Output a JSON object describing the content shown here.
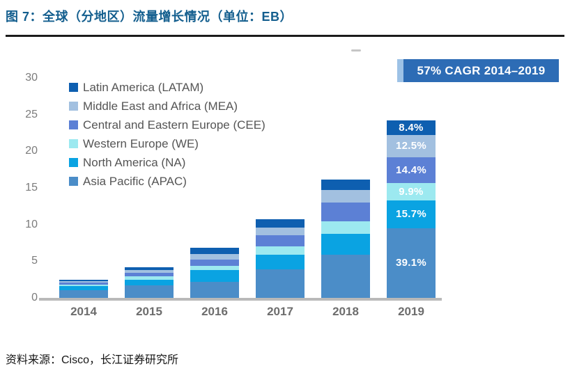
{
  "header": {
    "title": "图 7：全球（分地区）流量增长情况（单位：EB）"
  },
  "annotation": {
    "cagr_label": "57% CAGR 2014–2019"
  },
  "chart_data": {
    "type": "bar",
    "stacked": true,
    "title": "全球（分地区）流量增长情况",
    "unit": "EB",
    "categories": [
      "2014",
      "2015",
      "2016",
      "2017",
      "2018",
      "2019"
    ],
    "series": [
      {
        "name": "Asia Pacific (APAC)",
        "color": "#4b8dc8",
        "values": [
          1.0,
          1.7,
          2.2,
          3.9,
          5.9,
          9.5
        ],
        "label_2019": "39.1%"
      },
      {
        "name": "North America (NA)",
        "color": "#0aa3e2",
        "values": [
          0.6,
          0.8,
          1.6,
          2.0,
          2.8,
          3.8
        ],
        "label_2019": "15.7%"
      },
      {
        "name": "Western Europe (WE)",
        "color": "#9ce9f0",
        "values": [
          0.2,
          0.4,
          0.6,
          1.1,
          1.7,
          2.4
        ],
        "label_2019": "9.9%"
      },
      {
        "name": "Central and Eastern Europe (CEE)",
        "color": "#5c80d5",
        "values": [
          0.3,
          0.5,
          0.8,
          1.5,
          2.6,
          3.5
        ],
        "label_2019": "14.4%"
      },
      {
        "name": "Middle East and Africa (MEA)",
        "color": "#a2c0e0",
        "values": [
          0.2,
          0.4,
          0.8,
          1.1,
          1.7,
          3.0
        ],
        "label_2019": "12.5%"
      },
      {
        "name": "Latin America (LATAM)",
        "color": "#0e5fb0",
        "values": [
          0.2,
          0.4,
          0.8,
          1.1,
          1.4,
          2.0
        ],
        "label_2019": "8.4%"
      }
    ],
    "legend_order_top_to_bottom": [
      "Latin America (LATAM)",
      "Middle East and Africa (MEA)",
      "Central and Eastern Europe (CEE)",
      "Western Europe (WE)",
      "North America (NA)",
      "Asia Pacific (APAC)"
    ],
    "ylim": [
      0,
      30
    ],
    "yticks": [
      0,
      5,
      10,
      15,
      20,
      25,
      30
    ],
    "xlabel": "",
    "ylabel": "",
    "grid": false,
    "legend_position": "upper-left"
  },
  "footer": {
    "source": "资料来源：Cisco，长江证券研究所"
  }
}
